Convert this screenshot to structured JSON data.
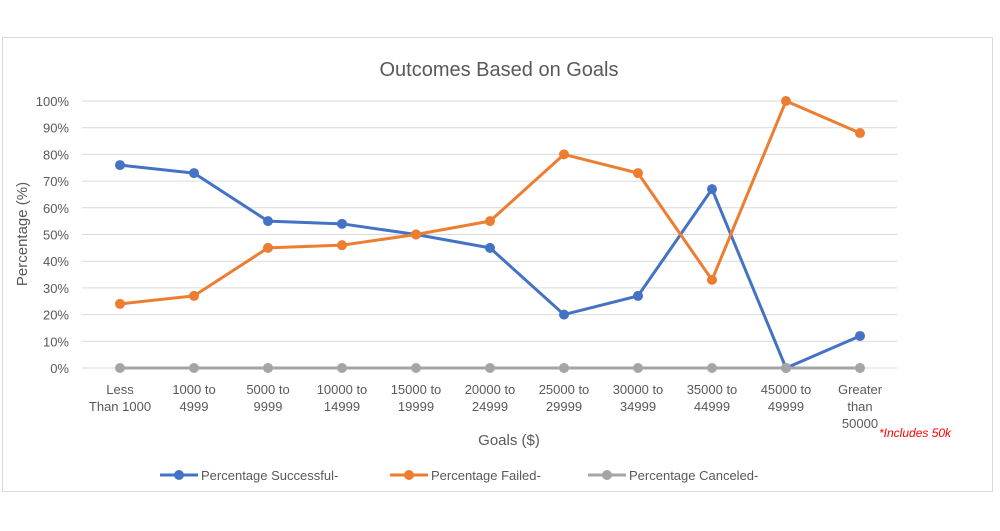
{
  "chart_data": {
    "type": "line",
    "title": "Outcomes Based on Goals",
    "xlabel": "Goals ($)",
    "ylabel": "Percentage (%)",
    "ylim": [
      0,
      100
    ],
    "yticks": [
      "0%",
      "10%",
      "20%",
      "30%",
      "40%",
      "50%",
      "60%",
      "70%",
      "80%",
      "90%",
      "100%"
    ],
    "grid": true,
    "legend_position": "bottom",
    "categories": [
      [
        "Less",
        "Than 1000"
      ],
      [
        "1000 to",
        "4999"
      ],
      [
        "5000 to",
        "9999"
      ],
      [
        "10000 to",
        "14999"
      ],
      [
        "15000 to",
        "19999"
      ],
      [
        "20000 to",
        "24999"
      ],
      [
        "25000 to",
        "29999"
      ],
      [
        "30000 to",
        "34999"
      ],
      [
        "35000 to",
        "44999"
      ],
      [
        "45000 to",
        "49999"
      ],
      [
        "Greater",
        "than",
        "50000"
      ]
    ],
    "annotation": {
      "text": "*Includes 50k",
      "color": "#ff0000"
    },
    "series": [
      {
        "name": "Percentage Successful-",
        "color": "#4472c4",
        "values": [
          76,
          73,
          55,
          54,
          50,
          45,
          20,
          27,
          67,
          0,
          12
        ]
      },
      {
        "name": "Percentage Failed-",
        "color": "#ed7d31",
        "values": [
          24,
          27,
          45,
          46,
          50,
          55,
          80,
          73,
          33,
          100,
          88
        ]
      },
      {
        "name": "Percentage Canceled-",
        "color": "#a5a5a5",
        "values": [
          0,
          0,
          0,
          0,
          0,
          0,
          0,
          0,
          0,
          0,
          0
        ]
      }
    ]
  }
}
